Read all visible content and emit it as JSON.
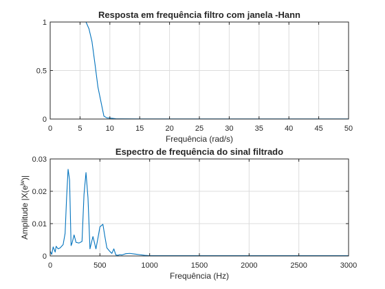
{
  "chart_data": [
    {
      "type": "line",
      "title": "Resposta em frequência filtro com janela -Hann",
      "xlabel": "Frequência (rad/s)",
      "ylabel": "",
      "xlim": [
        0,
        50
      ],
      "ylim": [
        0,
        1
      ],
      "xticks": [
        0,
        5,
        10,
        15,
        20,
        25,
        30,
        35,
        40,
        45,
        50
      ],
      "yticks": [
        0,
        0.5,
        1
      ],
      "ytick_labels": [
        "0",
        "0.5",
        "1"
      ],
      "grid": true,
      "series": [
        {
          "color": "#0072bd",
          "x": [
            0,
            1,
            2,
            3,
            4,
            5,
            5.6,
            6.0,
            6.5,
            7.0,
            7.5,
            8.0,
            8.5,
            9.0,
            9.5,
            10.0,
            11,
            12,
            15,
            20,
            30,
            40,
            50
          ],
          "y": [
            1,
            1,
            1,
            1,
            1,
            1,
            1,
            1,
            0.93,
            0.8,
            0.57,
            0.33,
            0.18,
            0.03,
            0.012,
            0.01,
            0.003,
            0.002,
            0.001,
            0.001,
            0.001,
            0.001,
            0.001
          ]
        }
      ]
    },
    {
      "type": "line",
      "title": "Espectro de frequência do sinal filtrado",
      "xlabel": "Frequência (Hz)",
      "ylabel": "Amplitude |X(e",
      "ylabel_sup": "jw",
      "ylabel_end": ")|",
      "xlim": [
        0,
        3000
      ],
      "ylim": [
        0,
        0.03
      ],
      "xticks": [
        0,
        500,
        1000,
        1500,
        2000,
        2500,
        3000
      ],
      "yticks": [
        0,
        0.01,
        0.02,
        0.03
      ],
      "ytick_labels": [
        "0",
        "0.01",
        "0.02",
        "0.03"
      ],
      "grid": true,
      "series": [
        {
          "color": "#0072bd",
          "x": [
            0,
            15,
            30,
            50,
            60,
            80,
            100,
            130,
            150,
            165,
            180,
            195,
            210,
            220,
            240,
            260,
            290,
            320,
            340,
            360,
            380,
            400,
            410,
            430,
            460,
            480,
            500,
            530,
            550,
            570,
            600,
            620,
            640,
            660,
            680,
            700,
            720,
            740,
            760,
            800,
            850,
            900,
            950,
            1000,
            1100,
            1200,
            1500,
            2000,
            2500,
            3000
          ],
          "y": [
            0.0015,
            0.0005,
            0.0028,
            0.0012,
            0.003,
            0.0022,
            0.0025,
            0.0035,
            0.007,
            0.018,
            0.0268,
            0.0235,
            0.0032,
            0.004,
            0.0065,
            0.0042,
            0.004,
            0.0045,
            0.019,
            0.0258,
            0.018,
            0.0022,
            0.0035,
            0.006,
            0.0022,
            0.0055,
            0.009,
            0.0098,
            0.006,
            0.0025,
            0.0014,
            0.0008,
            0.0022,
            0.0003,
            0.0002,
            0.0004,
            0.0003,
            0.0005,
            0.0007,
            0.0008,
            0.0006,
            0.0004,
            0.0002,
            0.0001,
            0.0001,
            0.0001,
            0.0001,
            0.0001,
            0.0001,
            0.0001
          ]
        }
      ]
    }
  ]
}
